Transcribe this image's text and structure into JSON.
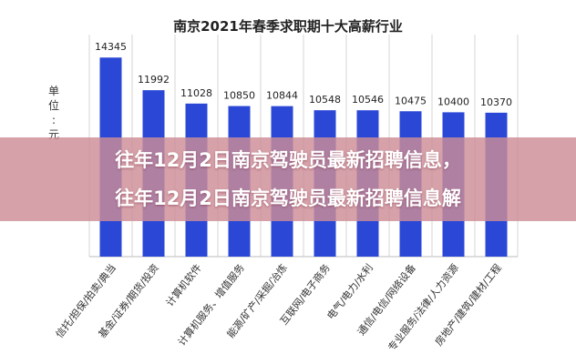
{
  "chart_data": {
    "type": "bar",
    "title": "南京2021年春季求职期十大高薪行业",
    "ylabel": "单位：元",
    "categories": [
      "信托/担保/拍卖/典当",
      "基金/证券/期货/投资",
      "计算机软件",
      "计算机服务、增值服务",
      "能源/矿产/采掘/冶炼",
      "互联网/电子商务",
      "电气/电力/水利",
      "通信/电信/网络设备",
      "专业服务/法律/人力资源",
      "房地产/建筑/建材/工程"
    ],
    "values": [
      14345,
      11992,
      11028,
      10850,
      10844,
      10548,
      10546,
      10475,
      10400,
      10370
    ],
    "ylim": [
      0,
      16000
    ],
    "grid": true,
    "legend": "none",
    "bar_color": "#2b47d6"
  },
  "overlay": {
    "line1": "往年12月2日南京驾驶员最新招聘信息，",
    "line2": "往年12月2日南京驾驶员最新招聘信息解"
  }
}
